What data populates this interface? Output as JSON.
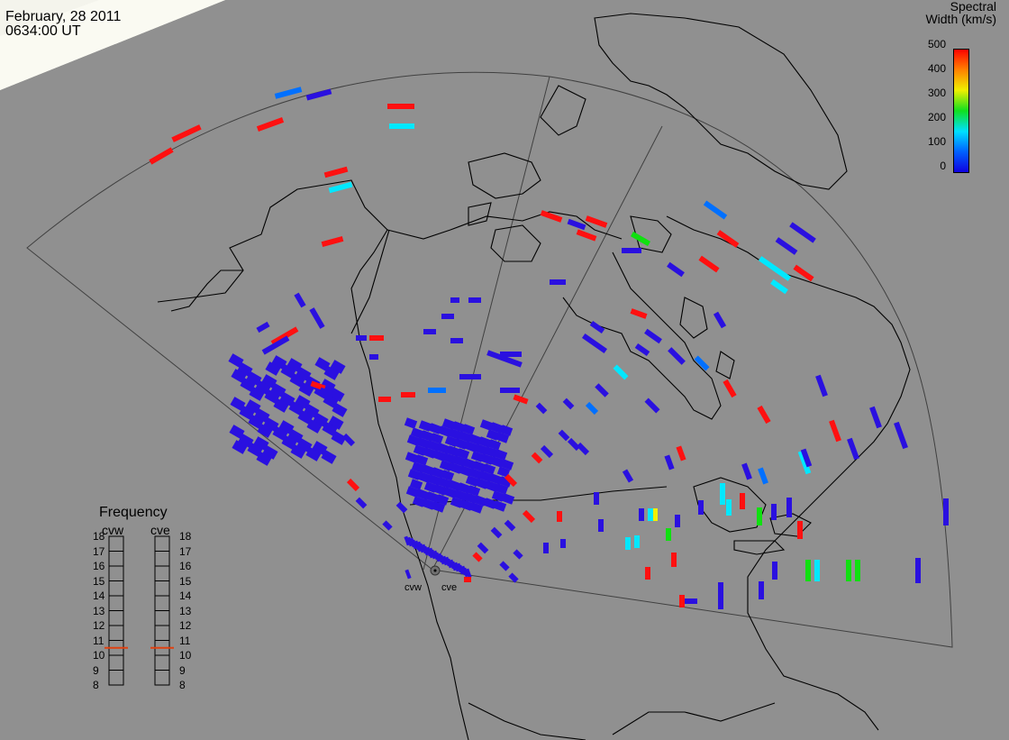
{
  "header": {
    "date": "February, 28 2011",
    "time": "0634:00 UT"
  },
  "colorbar": {
    "title_line1": "Spectral",
    "title_line2": "Width (km/s)",
    "ticks": [
      "500",
      "400",
      "300",
      "200",
      "100",
      "0"
    ],
    "colors": [
      "#1000e0",
      "#0060ff",
      "#00e0ff",
      "#10e020",
      "#f0f000",
      "#ff8000",
      "#ff0000"
    ]
  },
  "frequency_panel": {
    "title": "Frequency",
    "radars": [
      "cvw",
      "cve"
    ],
    "ticks": [
      "18",
      "17",
      "16",
      "15",
      "14",
      "13",
      "12",
      "11",
      "10",
      "9",
      "8"
    ],
    "cvw_value": 11,
    "cve_value": 11,
    "marker_color": "#e04010"
  },
  "radars": {
    "west_label": "cvw",
    "east_label": "cve"
  },
  "map": {
    "background": "#909090",
    "land_outline_color": "#000000",
    "fov_outline_color": "#404040"
  }
}
